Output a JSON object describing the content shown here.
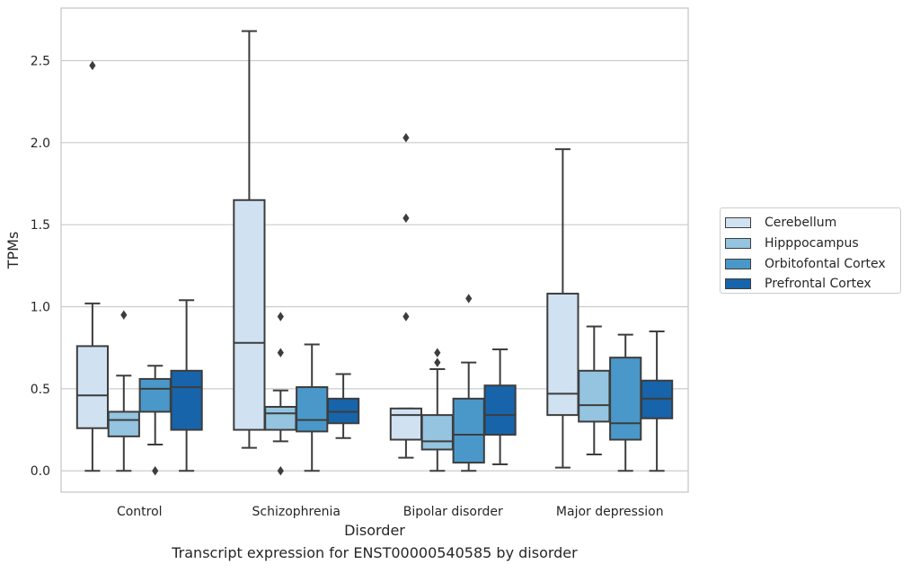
{
  "chart_data": {
    "type": "box",
    "caption": "Transcript expression for ENST00000540585 by disorder",
    "xlabel": "Disorder",
    "ylabel": "TPMs",
    "ylim": [
      -0.13,
      2.82
    ],
    "yticks": [
      0.0,
      0.5,
      1.0,
      1.5,
      2.0,
      2.5
    ],
    "ytick_labels": [
      "0.0",
      "0.5",
      "1.0",
      "1.5",
      "2.0",
      "2.5"
    ],
    "grid": "horizontal",
    "legend_position": "outside-right",
    "categories": [
      "Control",
      "Schizophrenia",
      "Bipolar disorder",
      "Major depression"
    ],
    "series": [
      {
        "name": "Cerebellum",
        "color": "#d0e1f2",
        "boxes": [
          {
            "whisker_low": 0.0,
            "q1": 0.26,
            "median": 0.46,
            "q3": 0.76,
            "whisker_high": 1.02,
            "outliers": [
              2.47
            ]
          },
          {
            "whisker_low": 0.14,
            "q1": 0.25,
            "median": 0.78,
            "q3": 1.65,
            "whisker_high": 2.68,
            "outliers": []
          },
          {
            "whisker_low": 0.08,
            "q1": 0.19,
            "median": 0.34,
            "q3": 0.38,
            "whisker_high": 0.38,
            "outliers": [
              0.94,
              1.54,
              2.03
            ]
          },
          {
            "whisker_low": 0.02,
            "q1": 0.34,
            "median": 0.47,
            "q3": 1.08,
            "whisker_high": 1.96,
            "outliers": []
          }
        ]
      },
      {
        "name": "Hipppocampus",
        "color": "#94c4df",
        "boxes": [
          {
            "whisker_low": 0.0,
            "q1": 0.21,
            "median": 0.31,
            "q3": 0.36,
            "whisker_high": 0.58,
            "outliers": [
              0.95
            ]
          },
          {
            "whisker_low": 0.18,
            "q1": 0.25,
            "median": 0.35,
            "q3": 0.39,
            "whisker_high": 0.49,
            "outliers": [
              0.0,
              0.72,
              0.94
            ]
          },
          {
            "whisker_low": 0.0,
            "q1": 0.13,
            "median": 0.18,
            "q3": 0.34,
            "whisker_high": 0.62,
            "outliers": [
              0.66,
              0.72
            ]
          },
          {
            "whisker_low": 0.1,
            "q1": 0.3,
            "median": 0.4,
            "q3": 0.61,
            "whisker_high": 0.88,
            "outliers": []
          }
        ]
      },
      {
        "name": "Orbitofontal Cortex",
        "color": "#4a98c9",
        "boxes": [
          {
            "whisker_low": 0.16,
            "q1": 0.36,
            "median": 0.5,
            "q3": 0.56,
            "whisker_high": 0.64,
            "outliers": [
              0.0
            ]
          },
          {
            "whisker_low": 0.0,
            "q1": 0.24,
            "median": 0.31,
            "q3": 0.51,
            "whisker_high": 0.77,
            "outliers": []
          },
          {
            "whisker_low": 0.0,
            "q1": 0.05,
            "median": 0.22,
            "q3": 0.44,
            "whisker_high": 0.66,
            "outliers": [
              1.05
            ]
          },
          {
            "whisker_low": 0.0,
            "q1": 0.19,
            "median": 0.29,
            "q3": 0.69,
            "whisker_high": 0.83,
            "outliers": []
          }
        ]
      },
      {
        "name": "Prefrontal Cortex",
        "color": "#1764ab",
        "boxes": [
          {
            "whisker_low": 0.0,
            "q1": 0.25,
            "median": 0.51,
            "q3": 0.61,
            "whisker_high": 1.04,
            "outliers": []
          },
          {
            "whisker_low": 0.2,
            "q1": 0.29,
            "median": 0.36,
            "q3": 0.44,
            "whisker_high": 0.59,
            "outliers": []
          },
          {
            "whisker_low": 0.04,
            "q1": 0.22,
            "median": 0.34,
            "q3": 0.52,
            "whisker_high": 0.74,
            "outliers": []
          },
          {
            "whisker_low": 0.0,
            "q1": 0.32,
            "median": 0.44,
            "q3": 0.55,
            "whisker_high": 0.85,
            "outliers": []
          }
        ]
      }
    ],
    "colors": {
      "grid": "#cccccc",
      "axes_edge": "#cccccc",
      "box_edge": "#3d3d3d",
      "text": "#262626",
      "background": "#ffffff"
    }
  }
}
